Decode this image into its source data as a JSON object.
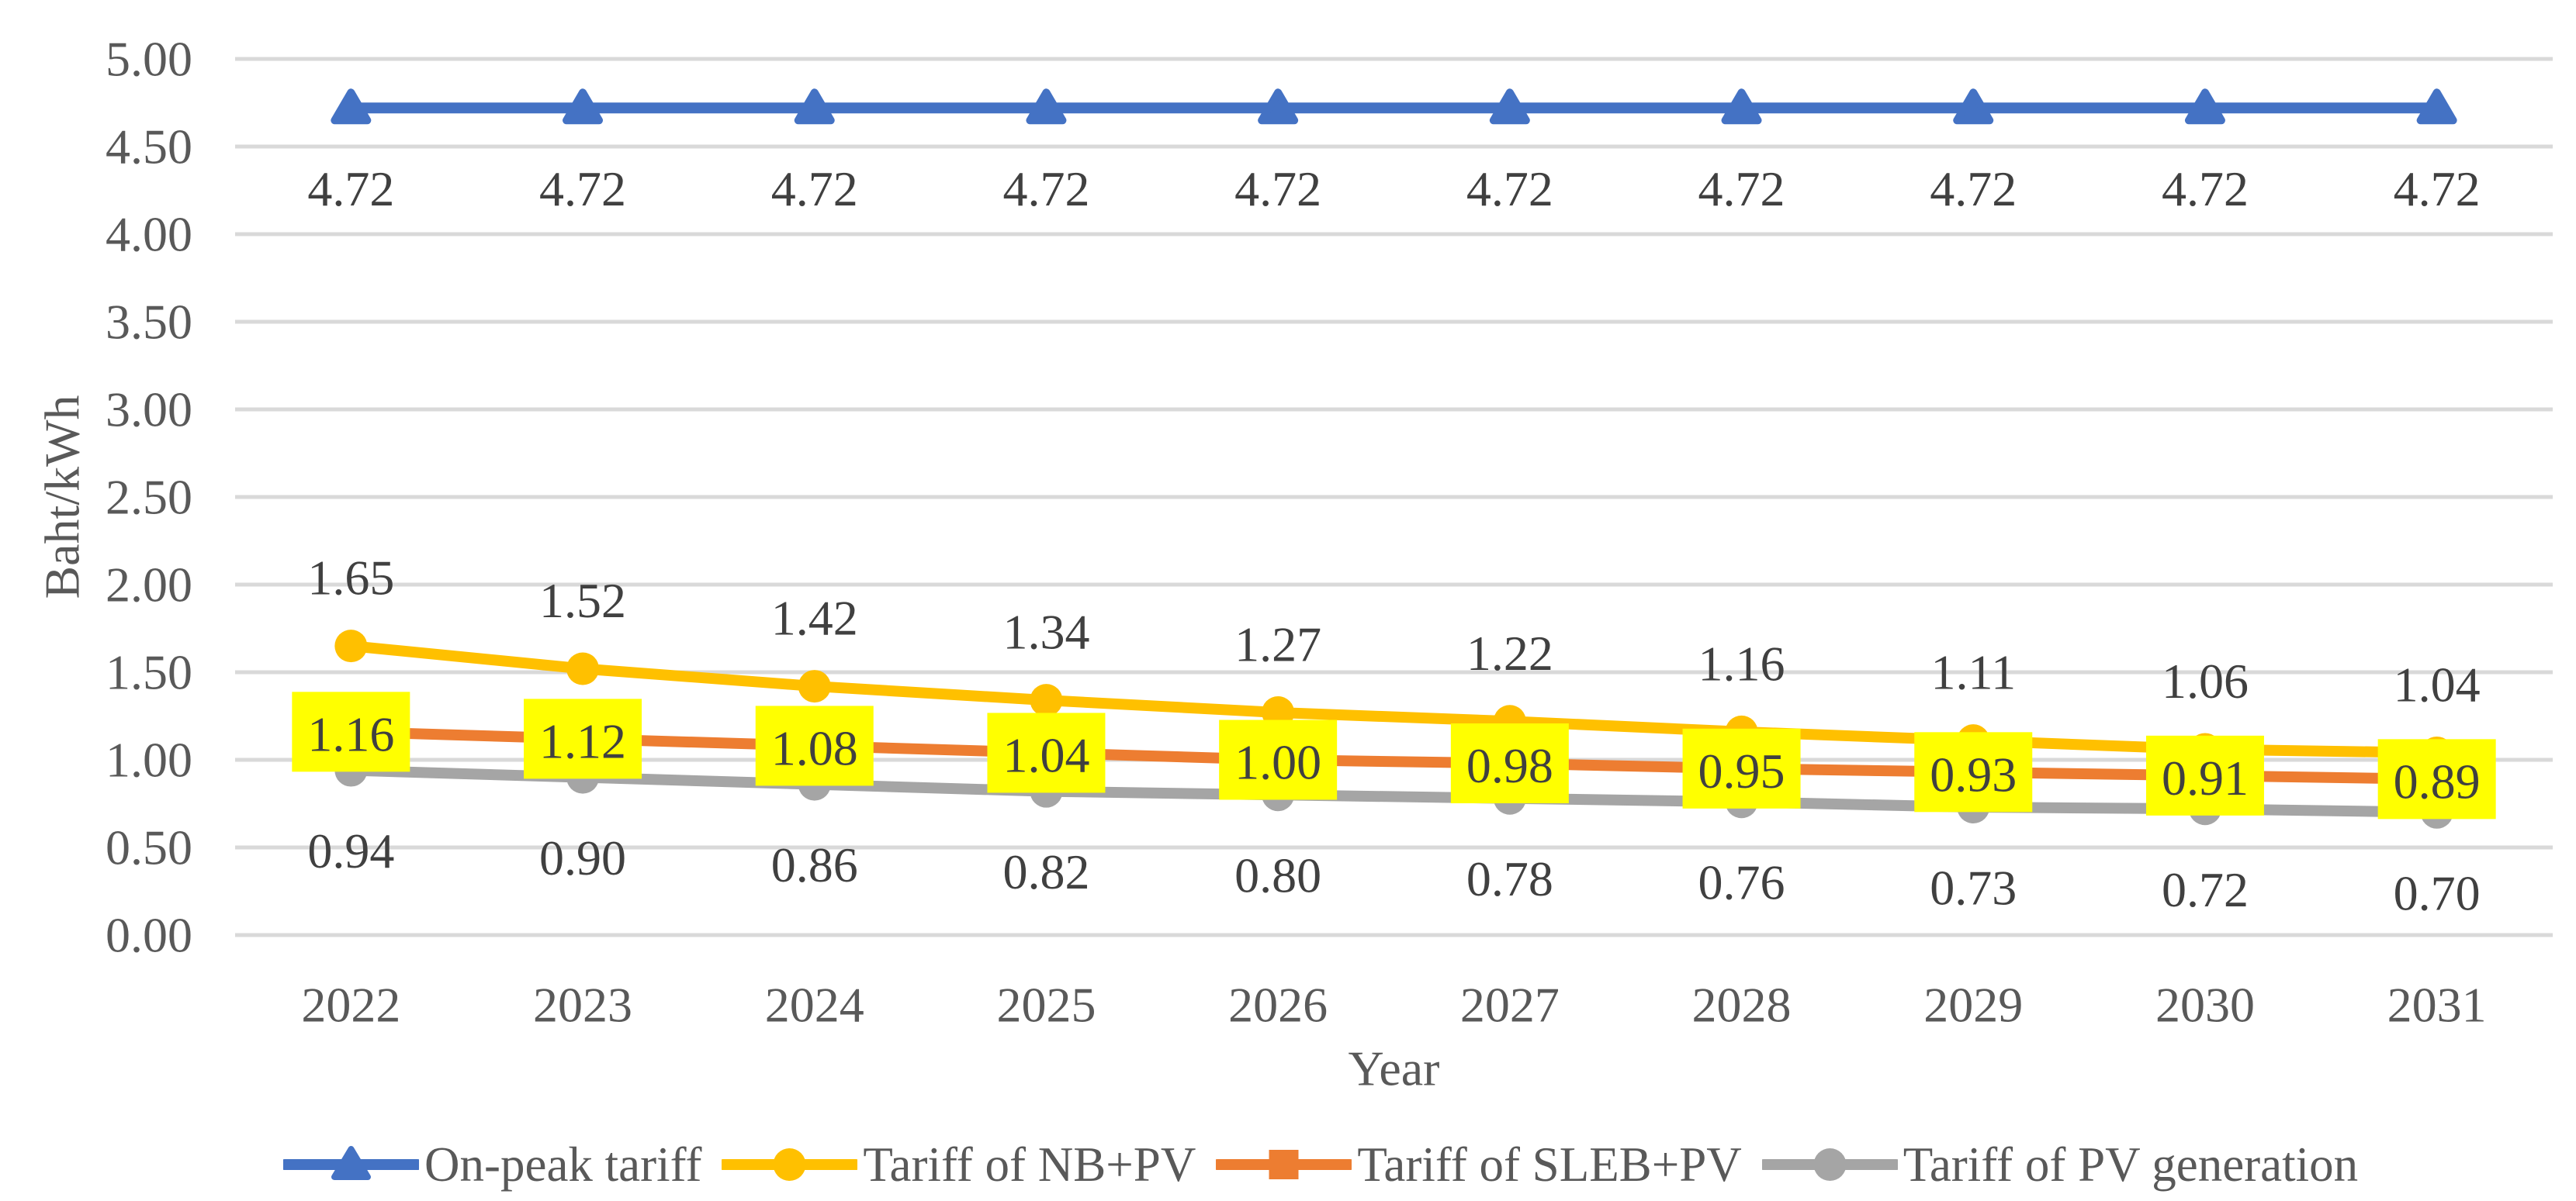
{
  "chart_data": {
    "type": "line",
    "title": "",
    "xlabel": "Year",
    "ylabel": "Baht/kWh",
    "x": [
      "2022",
      "2023",
      "2024",
      "2025",
      "2026",
      "2027",
      "2028",
      "2029",
      "2030",
      "2031"
    ],
    "ylim": [
      0,
      5
    ],
    "ytick_step": 0.5,
    "y_ticks": [
      "5.00",
      "4.50",
      "4.00",
      "3.50",
      "3.00",
      "2.50",
      "2.00",
      "1.50",
      "1.00",
      "0.50",
      "0.00"
    ],
    "grid": true,
    "legend_position": "bottom",
    "series": [
      {
        "name": "On-peak tariff",
        "color": "#4472C4",
        "marker": "triangle",
        "label_position": "below",
        "values": [
          4.72,
          4.72,
          4.72,
          4.72,
          4.72,
          4.72,
          4.72,
          4.72,
          4.72,
          4.72
        ],
        "labels": [
          "4.72",
          "4.72",
          "4.72",
          "4.72",
          "4.72",
          "4.72",
          "4.72",
          "4.72",
          "4.72",
          "4.72"
        ]
      },
      {
        "name": "Tariff of NB+PV",
        "color": "#FFC000",
        "marker": "circle",
        "label_position": "above",
        "values": [
          1.65,
          1.52,
          1.42,
          1.34,
          1.27,
          1.22,
          1.16,
          1.11,
          1.06,
          1.04
        ],
        "labels": [
          "1.65",
          "1.52",
          "1.42",
          "1.34",
          "1.27",
          "1.22",
          "1.16",
          "1.11",
          "1.06",
          "1.04"
        ]
      },
      {
        "name": "Tariff of SLEB+PV",
        "color": "#ED7D31",
        "marker": "square",
        "label_position": "center",
        "label_highlight": "#FFFF00",
        "values": [
          1.16,
          1.12,
          1.08,
          1.04,
          1.0,
          0.98,
          0.95,
          0.93,
          0.91,
          0.89
        ],
        "labels": [
          "1.16",
          "1.12",
          "1.08",
          "1.04",
          "1.00",
          "0.98",
          "0.95",
          "0.93",
          "0.91",
          "0.89"
        ]
      },
      {
        "name": "Tariff of PV generation",
        "color": "#A5A5A5",
        "marker": "circle",
        "label_position": "below",
        "values": [
          0.94,
          0.9,
          0.86,
          0.82,
          0.8,
          0.78,
          0.76,
          0.73,
          0.72,
          0.7
        ],
        "labels": [
          "0.94",
          "0.90",
          "0.86",
          "0.82",
          "0.80",
          "0.78",
          "0.76",
          "0.73",
          "0.72",
          "0.70"
        ]
      }
    ],
    "colors": {
      "gridline": "#D9D9D9",
      "axis_text": "#595959",
      "data_label_text": "#404040",
      "highlight": "#FFFF00"
    }
  }
}
